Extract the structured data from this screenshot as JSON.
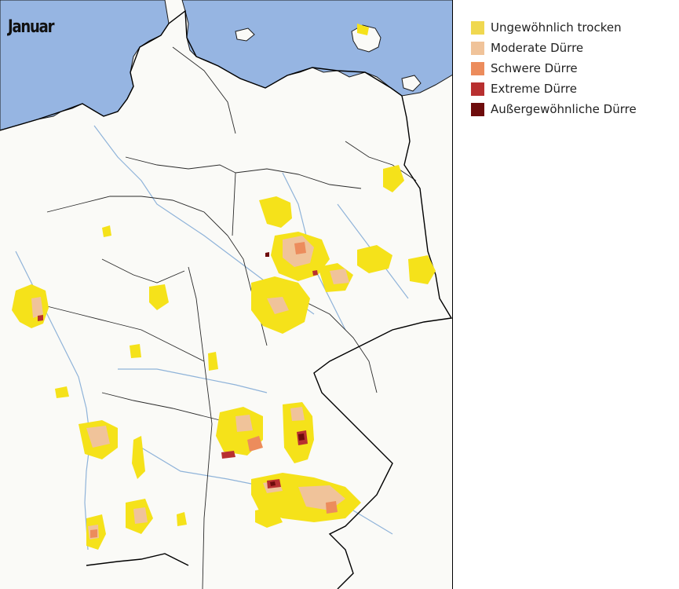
{
  "map": {
    "title": "Januar"
  },
  "legend": {
    "items": [
      {
        "label": "Ungewöhnlich trocken",
        "color": "#f0d850",
        "icon": "legend-swatch"
      },
      {
        "label": "Moderate Dürre",
        "color": "#f0c39a",
        "icon": "legend-swatch"
      },
      {
        "label": "Schwere Dürre",
        "color": "#ec8c5c",
        "icon": "legend-swatch"
      },
      {
        "label": "Extreme Dürre",
        "color": "#b83030",
        "icon": "legend-swatch"
      },
      {
        "label": "Außergewöhnliche Dürre",
        "color": "#6e0c0c",
        "icon": "legend-swatch"
      }
    ]
  },
  "colors": {
    "sea": "#96b5e2",
    "land": "#fafaf7",
    "river": "#8fb3d9",
    "border": "#000000",
    "drought_yellow": "#f5e21a"
  }
}
